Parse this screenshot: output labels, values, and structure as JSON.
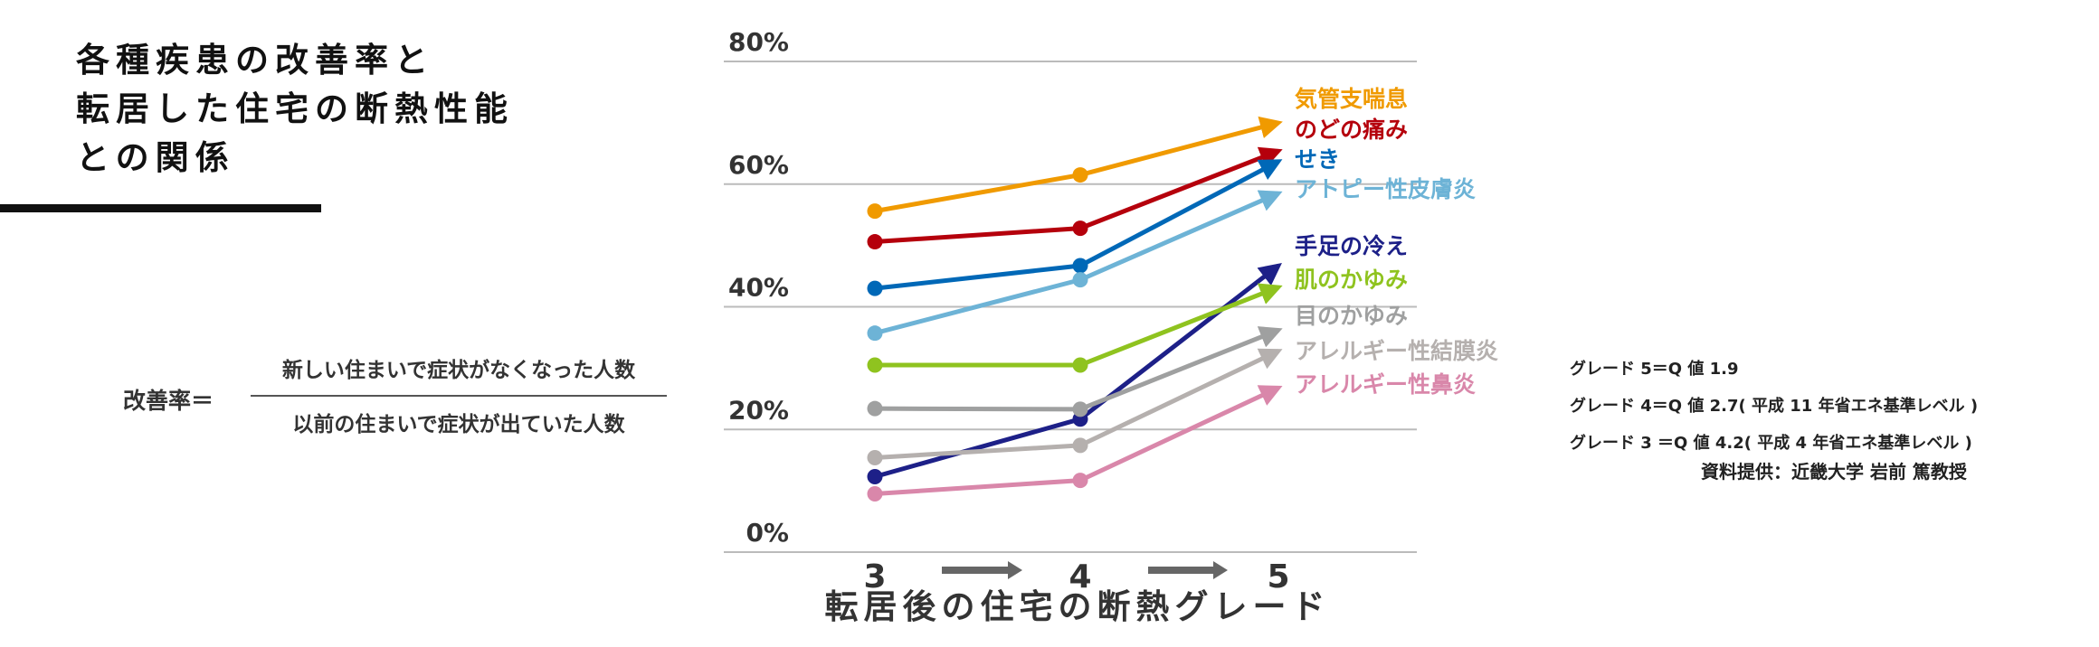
{
  "title_lines": [
    "各種疾患の改善率と",
    "転居した住宅の断熱性能",
    "との関係"
  ],
  "formula": {
    "label": "改善率＝",
    "numerator": "新しい住まいで症状がなくなった人数",
    "denominator": "以前の住まいで症状が出ていた人数"
  },
  "notes": [
    "グレード 5＝Q 値 1.9",
    "グレード 4＝Q 値 2.7( 平成 11 年省エネ基準レベル )",
    "グレード 3 ＝Q 値 4.2( 平成 4 年省エネ基準レベル )"
  ],
  "credit": "資料提供：近畿大学 岩前 篤教授",
  "chart_data": {
    "type": "line",
    "xlabel": "転居後の住宅の断熱グレード",
    "categories": [
      "3",
      "4",
      "5"
    ],
    "ylim": [
      0,
      80
    ],
    "yticks": [
      "0%",
      "20%",
      "40%",
      "60%",
      "80%"
    ],
    "grid": true,
    "legend": "right, labels at line ends",
    "series": [
      {
        "name": "気管支喘息",
        "color": "#f09a00",
        "values": [
          55.6,
          61.5,
          70.0
        ]
      },
      {
        "name": "のどの痛み",
        "color": "#b5000c",
        "values": [
          50.6,
          52.8,
          65.4
        ]
      },
      {
        "name": "せき",
        "color": "#0068b7",
        "values": [
          43.0,
          46.7,
          63.7
        ]
      },
      {
        "name": "アトピー性皮膚炎",
        "color": "#6db3d6",
        "values": [
          35.7,
          44.4,
          58.5
        ]
      },
      {
        "name": "手足の冷え",
        "color": "#1d2088",
        "values": [
          12.3,
          21.7,
          46.7
        ]
      },
      {
        "name": "肌のかゆみ",
        "color": "#8fc31f",
        "values": [
          30.5,
          30.5,
          43.2
        ]
      },
      {
        "name": "目のかゆみ",
        "color": "#9fa0a0",
        "values": [
          23.4,
          23.3,
          36.2
        ]
      },
      {
        "name": "アレルギー性結膜炎",
        "color": "#b5b0ae",
        "values": [
          15.4,
          17.4,
          32.8
        ]
      },
      {
        "name": "アレルギー性鼻炎",
        "color": "#d987aa",
        "values": [
          9.5,
          11.7,
          26.8
        ]
      }
    ]
  }
}
